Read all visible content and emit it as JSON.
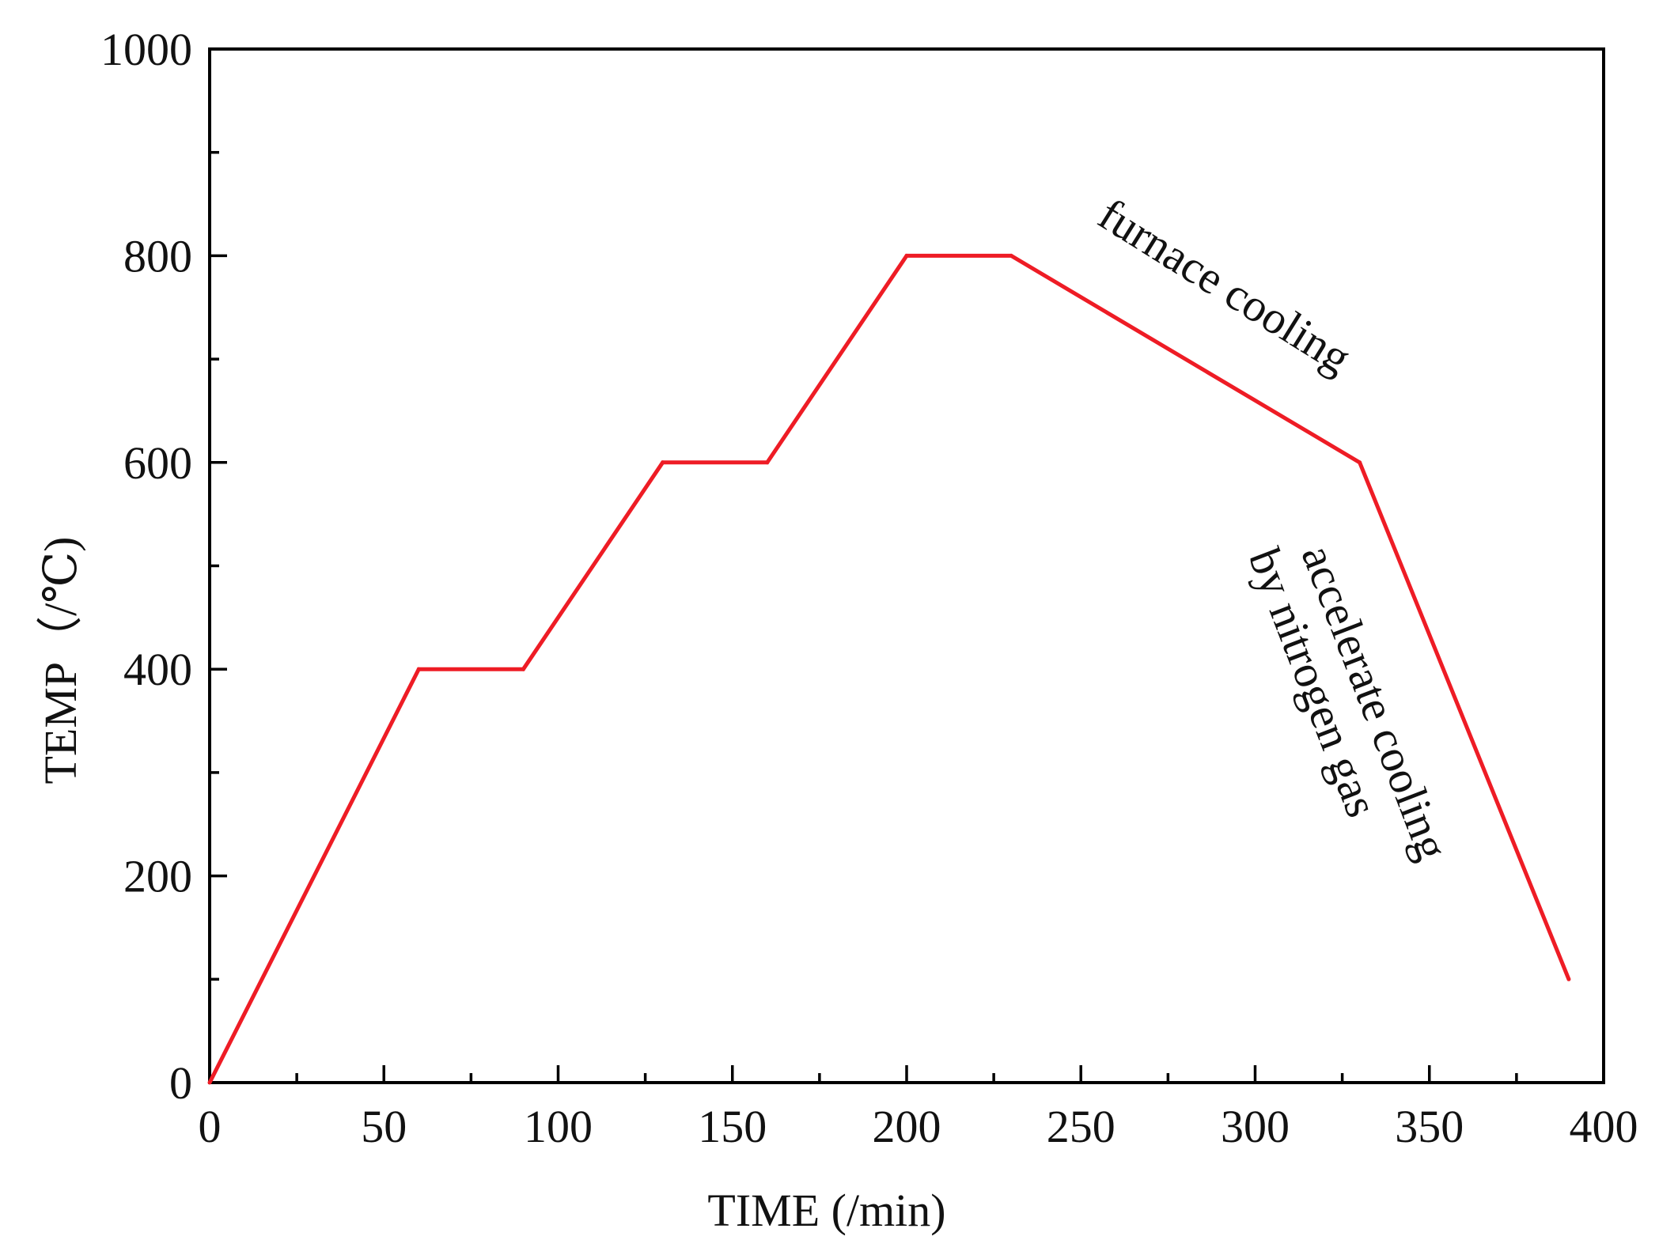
{
  "chart_data": {
    "type": "line",
    "xlabel": "TIME (/min)",
    "ylabel": "TEMP（/℃)",
    "xlim": [
      0,
      400
    ],
    "ylim": [
      0,
      1000
    ],
    "x_ticks": [
      "0",
      "50",
      "100",
      "150",
      "200",
      "250",
      "300",
      "350",
      "400"
    ],
    "y_ticks": [
      "0",
      "200",
      "400",
      "600",
      "800",
      "1000"
    ],
    "grid": false,
    "series": [
      {
        "color": "#ee1c25",
        "x": [
          0,
          60,
          90,
          130,
          160,
          200,
          230,
          330,
          390
        ],
        "y": [
          0,
          400,
          400,
          600,
          600,
          800,
          800,
          600,
          100
        ]
      }
    ],
    "annotations": {
      "furnace": "furnace cooling",
      "accelerate_line1": "accelerate cooling",
      "accelerate_line2": "by nitrogen gas"
    }
  }
}
